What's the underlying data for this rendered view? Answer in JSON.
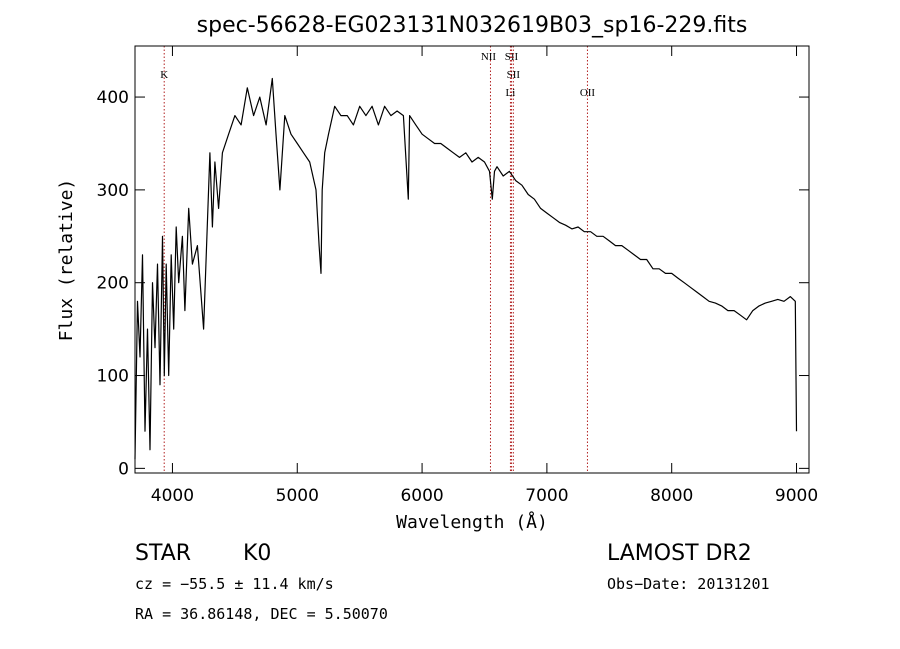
{
  "chart_data": {
    "type": "line",
    "title": "spec-56628-EG023131N032619B03_sp16-229.fits",
    "xlabel": "Wavelength (Å)",
    "ylabel": "Flux (relative)",
    "xlim": [
      3700,
      9100
    ],
    "ylim": [
      -5,
      455
    ],
    "x_ticks": [
      4000,
      5000,
      6000,
      7000,
      8000,
      9000
    ],
    "y_ticks": [
      0,
      100,
      200,
      300,
      400
    ],
    "grid": false,
    "series": [
      {
        "line_color": "#000000",
        "x": [
          3700,
          3720,
          3740,
          3760,
          3780,
          3800,
          3820,
          3840,
          3860,
          3880,
          3900,
          3920,
          3935,
          3950,
          3970,
          3990,
          4010,
          4030,
          4050,
          4080,
          4100,
          4130,
          4160,
          4200,
          4250,
          4300,
          4320,
          4340,
          4370,
          4400,
          4450,
          4500,
          4550,
          4600,
          4650,
          4700,
          4750,
          4800,
          4830,
          4861,
          4900,
          4950,
          5000,
          5050,
          5100,
          5150,
          5175,
          5190,
          5200,
          5220,
          5250,
          5300,
          5350,
          5400,
          5450,
          5500,
          5550,
          5600,
          5650,
          5700,
          5750,
          5800,
          5850,
          5890,
          5900,
          5950,
          6000,
          6050,
          6100,
          6150,
          6200,
          6250,
          6300,
          6350,
          6400,
          6450,
          6500,
          6540,
          6563,
          6580,
          6600,
          6650,
          6700,
          6750,
          6800,
          6850,
          6900,
          6950,
          7000,
          7050,
          7100,
          7150,
          7200,
          7250,
          7300,
          7350,
          7400,
          7450,
          7500,
          7550,
          7600,
          7650,
          7700,
          7750,
          7800,
          7850,
          7900,
          7950,
          8000,
          8050,
          8100,
          8150,
          8200,
          8250,
          8300,
          8350,
          8400,
          8450,
          8500,
          8550,
          8600,
          8650,
          8700,
          8750,
          8800,
          8850,
          8900,
          8950,
          8990,
          9000
        ],
        "y": [
          10,
          180,
          120,
          230,
          40,
          150,
          20,
          200,
          130,
          220,
          90,
          250,
          100,
          220,
          100,
          230,
          150,
          260,
          200,
          250,
          170,
          280,
          220,
          240,
          150,
          340,
          260,
          330,
          280,
          340,
          360,
          380,
          370,
          410,
          380,
          400,
          370,
          420,
          360,
          300,
          380,
          360,
          350,
          340,
          330,
          300,
          240,
          210,
          300,
          340,
          360,
          390,
          380,
          380,
          370,
          390,
          380,
          390,
          370,
          390,
          380,
          385,
          380,
          290,
          380,
          370,
          360,
          355,
          350,
          350,
          345,
          340,
          335,
          340,
          330,
          335,
          330,
          320,
          290,
          320,
          325,
          315,
          320,
          310,
          305,
          295,
          290,
          280,
          275,
          270,
          265,
          262,
          258,
          260,
          255,
          255,
          250,
          250,
          245,
          240,
          240,
          235,
          230,
          225,
          225,
          215,
          215,
          210,
          210,
          205,
          200,
          195,
          190,
          185,
          180,
          178,
          175,
          170,
          170,
          165,
          160,
          170,
          175,
          178,
          180,
          182,
          180,
          185,
          180,
          40
        ]
      }
    ],
    "annotations": [
      {
        "label": "K",
        "x": 3934
      },
      {
        "label": "NII",
        "x": 6548
      },
      {
        "label": "SII",
        "x": 6716
      },
      {
        "label": "SII",
        "x": 6731
      },
      {
        "label": "Li",
        "x": 6708
      },
      {
        "label": "OII",
        "x": 7325
      }
    ]
  },
  "info": {
    "class": "STAR",
    "subclass": "K0",
    "survey": "LAMOST DR2",
    "cz": "cz = −55.5 ± 11.4 km/s",
    "obsdate": "Obs−Date: 20131201",
    "radec": "RA =   36.86148, DEC =    5.50070"
  }
}
